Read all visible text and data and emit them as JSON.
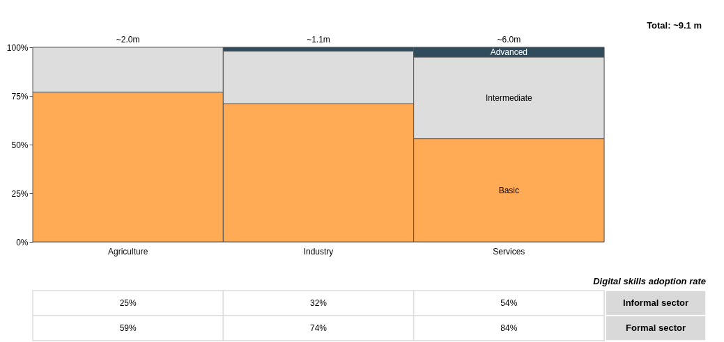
{
  "chart_data": [
    {
      "type": "bar",
      "stacked": true,
      "categories": [
        "Agriculture",
        "Industry",
        "Services"
      ],
      "series": [
        {
          "name": "Basic",
          "color": "#ffaa55",
          "values": [
            77,
            71,
            53
          ]
        },
        {
          "name": "Intermediate",
          "color": "#dddddd",
          "values": [
            23,
            27,
            42
          ]
        },
        {
          "name": "Advanced",
          "color": "#2f4b5c",
          "values": [
            null,
            2,
            5
          ]
        }
      ],
      "ylim": [
        0,
        100
      ],
      "yticks": [
        {
          "value": 0,
          "label": "0%"
        },
        {
          "value": 25,
          "label": "25%"
        },
        {
          "value": 50,
          "label": "50%"
        },
        {
          "value": 75,
          "label": "75%"
        },
        {
          "value": 100,
          "label": "100%"
        }
      ],
      "annotations": [
        {
          "text": "~2.0m",
          "x": "Agriculture",
          "y": 100
        },
        {
          "text": "~1.1m",
          "x": "Industry",
          "y": 100
        },
        {
          "text": "~6.0m",
          "x": "Services",
          "y": 100
        },
        "Total: ~9.1 m"
      ]
    },
    {
      "type": "other",
      "title": "Digital skills adoption rate",
      "y_categories": [
        "Informal sector",
        "Formal sector"
      ],
      "cell_labels": [
        [
          "25%",
          "32%",
          "54%"
        ],
        [
          "59%",
          "74%",
          "84%"
        ]
      ]
    }
  ]
}
